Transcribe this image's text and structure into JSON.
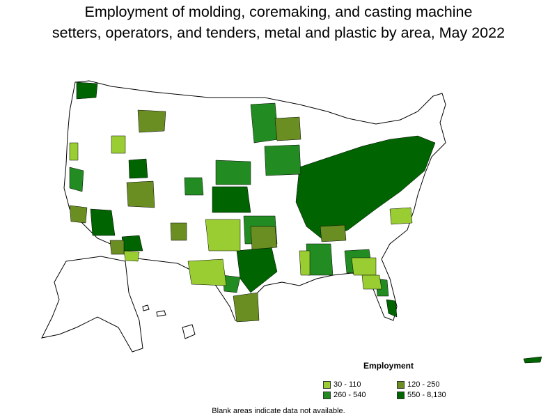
{
  "title_line1": "Employment of molding, coremaking, and casting machine",
  "title_line2": "setters, operators, and tenders, metal and plastic by area, May 2022",
  "legend": {
    "title": "Employment",
    "items": [
      {
        "label": "30 - 110",
        "color": "#9acd32"
      },
      {
        "label": "120 - 250",
        "color": "#6b8e23"
      },
      {
        "label": "260 - 540",
        "color": "#228b22"
      },
      {
        "label": "550 - 8,130",
        "color": "#006400"
      }
    ]
  },
  "note": "Blank areas indicate data not available.",
  "colors": {
    "blank": "#ffffff",
    "border": "#000000"
  }
}
